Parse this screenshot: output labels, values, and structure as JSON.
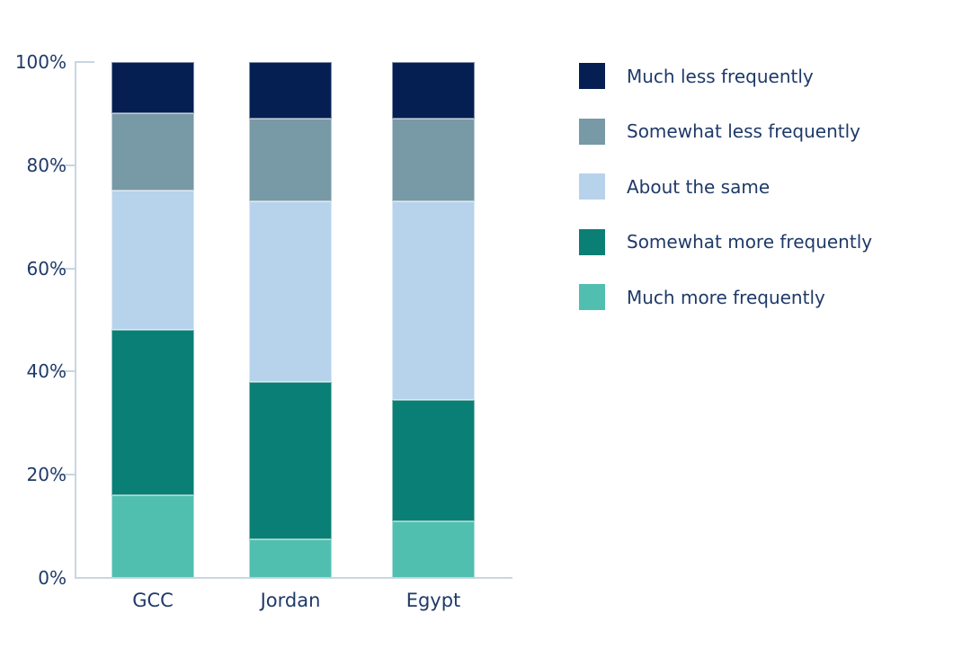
{
  "chart_data": {
    "type": "stacked_bar",
    "title": "",
    "categories": [
      "GCC",
      "Jordan",
      "Egypt"
    ],
    "unit": "%",
    "stack_order": "bottom_to_top",
    "series": [
      {
        "name": "Much more frequently",
        "color": "#50bfb0",
        "values": [
          16,
          7.5,
          11
        ]
      },
      {
        "name": "Somewhat more frequently",
        "color": "#0a7f75",
        "values": [
          32,
          30.5,
          23.5
        ]
      },
      {
        "name": "About the same",
        "color": "#b7d2eb",
        "values": [
          27,
          35,
          38.5
        ]
      },
      {
        "name": "Somewhat less frequently",
        "color": "#7899a6",
        "values": [
          15,
          16,
          16
        ]
      },
      {
        "name": "Much less frequently",
        "color": "#051f52",
        "values": [
          10,
          11,
          11
        ]
      }
    ],
    "y_axis": {
      "range": [
        0,
        100
      ],
      "tick_values": [
        100,
        80,
        60,
        40,
        20,
        0
      ],
      "tick_labels": [
        "100%",
        "80%",
        "60%",
        "40%",
        "20%",
        "0%"
      ]
    },
    "legend": {
      "position": "right",
      "items": [
        {
          "label": "Much less frequently",
          "color": "#051f52"
        },
        {
          "label": "Somewhat less frequently",
          "color": "#7899a6"
        },
        {
          "label": "About the same",
          "color": "#b7d2eb"
        },
        {
          "label": "Somewhat more frequently",
          "color": "#0a7f75"
        },
        {
          "label": "Much more frequently",
          "color": "#50bfb0"
        }
      ]
    },
    "grid": false
  },
  "colors": {
    "axis": "#c8d6e2",
    "label_text": "#1f3a68",
    "segment_stroke": "rgba(255,255,255,0.5)"
  }
}
